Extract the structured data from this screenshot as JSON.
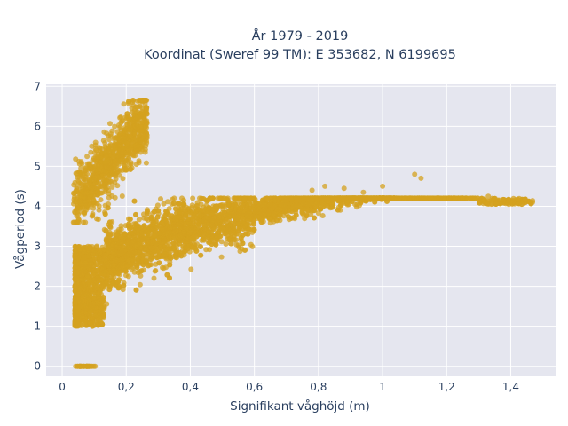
{
  "chart_data": {
    "type": "scatter",
    "title_line1": "År 1979 - 2019",
    "title_line2": "Koordinat (Sweref 99 TM): E 353682, N 6199695",
    "xlabel": "Signifikant våghöjd (m)",
    "ylabel": "Vågperiod (s)",
    "xlim": [
      -0.05,
      1.54
    ],
    "ylim": [
      -0.25,
      7.05
    ],
    "x_ticks": [
      0,
      0.2,
      0.4,
      0.6,
      0.8,
      1,
      1.2,
      1.4
    ],
    "x_tick_labels": [
      "0",
      "0,2",
      "0,4",
      "0,6",
      "0,8",
      "1",
      "1,2",
      "1,4"
    ],
    "y_ticks": [
      0,
      1,
      2,
      3,
      4,
      5,
      6,
      7
    ],
    "y_tick_labels": [
      "0",
      "1",
      "2",
      "3",
      "4",
      "5",
      "6",
      "7"
    ],
    "grid": true,
    "marker_color": "#d4a21f",
    "plot_background": "#e5e6ef",
    "series": [
      {
        "values_description_free": true,
        "x": [
          0.05,
          0.06,
          0.07,
          0.08,
          0.09,
          0.1,
          0.04,
          0.05,
          0.06,
          0.07,
          0.08,
          0.09,
          0.1,
          0.12,
          0.06,
          0.08,
          0.1,
          0.12,
          0.14,
          0.16,
          0.18,
          0.1,
          0.15,
          0.2,
          0.25,
          0.3,
          0.35,
          0.2,
          0.25,
          0.3,
          0.35,
          0.4,
          0.45,
          0.5,
          0.55,
          0.6,
          0.4,
          0.5,
          0.6,
          0.7,
          0.8,
          0.9,
          1.0,
          1.1,
          1.2,
          1.3,
          1.4,
          1.47,
          0.05,
          0.06,
          0.07,
          0.08,
          0.09,
          0.1,
          0.12,
          0.14,
          0.16,
          0.18,
          0.2,
          0.22,
          0.24,
          0.06,
          0.08,
          0.1,
          0.12,
          0.14,
          0.05,
          0.06,
          0.07,
          0.08,
          0.09,
          0.1,
          0.78,
          0.82,
          0.88,
          0.94,
          1.0,
          1.1,
          1.12
        ],
        "y": [
          0,
          0,
          0,
          0,
          0,
          0,
          1.5,
          1.3,
          1.2,
          1.1,
          1.05,
          1.1,
          1.2,
          1.4,
          2.0,
          2.2,
          2.4,
          2.5,
          2.6,
          2.7,
          2.8,
          1.8,
          2.0,
          2.3,
          2.5,
          2.7,
          2.9,
          2.2,
          2.4,
          2.6,
          2.8,
          3.0,
          3.1,
          3.2,
          3.3,
          3.4,
          3.0,
          3.1,
          3.2,
          3.35,
          3.45,
          3.55,
          3.65,
          3.75,
          3.85,
          3.95,
          4.05,
          4.15,
          4.0,
          4.6,
          5.2,
          5.5,
          5.6,
          5.7,
          5.8,
          5.9,
          6.0,
          6.1,
          6.2,
          6.3,
          6.35,
          3.8,
          4.2,
          4.8,
          5.0,
          5.2,
          2.6,
          2.9,
          3.1,
          3.3,
          3.0,
          2.8,
          4.4,
          4.5,
          4.4,
          4.3,
          4.5,
          4.8,
          4.7
        ]
      }
    ]
  }
}
